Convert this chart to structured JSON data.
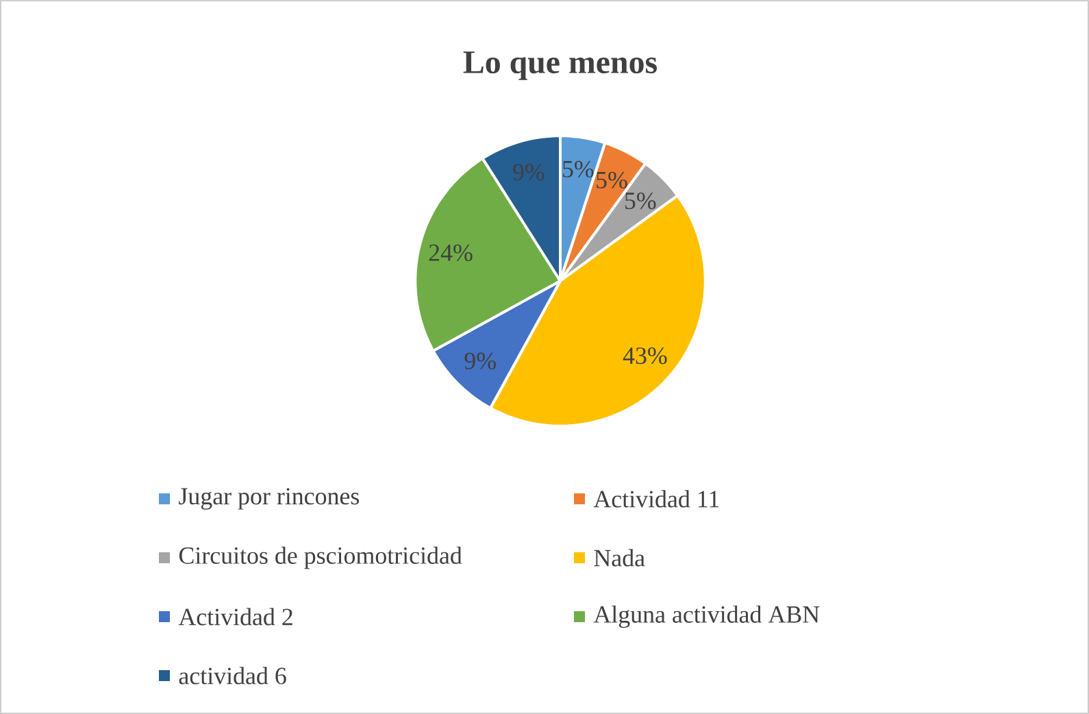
{
  "chart_data": {
    "type": "pie",
    "title": "Lo que menos",
    "categories": [
      "Jugar por rincones",
      "Actividad 11",
      "Circuitos de psciomotricidad",
      "Nada",
      "Actividad 2",
      "Alguna actividad ABN",
      "actividad 6"
    ],
    "values": [
      5,
      5,
      5,
      43,
      9,
      24,
      9
    ],
    "value_labels": [
      "5%",
      "5%",
      "5%",
      "43%",
      "9%",
      "24%",
      "9%"
    ],
    "colors": [
      "#5b9bd5",
      "#ed7d31",
      "#a5a5a5",
      "#ffc000",
      "#4472c4",
      "#70ad47",
      "#255e91"
    ],
    "legend": "bottom"
  }
}
